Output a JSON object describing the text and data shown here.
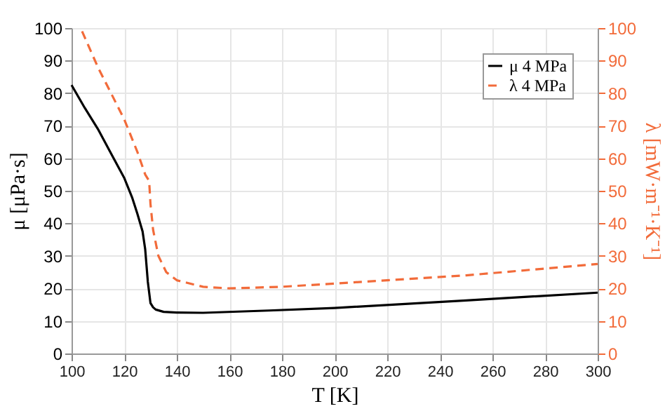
{
  "chart_data": {
    "type": "line",
    "xlabel": "T [K]",
    "ylabel": "μ [μPa·s]",
    "y2label": "λ [mW·m⁻¹·K⁻¹]",
    "xlim": [
      100,
      300
    ],
    "xticks": [
      100,
      120,
      140,
      160,
      180,
      200,
      220,
      240,
      260,
      280,
      300
    ],
    "ylim": [
      0,
      100
    ],
    "yticks": [
      0,
      10,
      20,
      30,
      40,
      50,
      60,
      70,
      80,
      90,
      100
    ],
    "y2lim": [
      0,
      100
    ],
    "y2ticks": [
      0,
      10,
      20,
      30,
      40,
      50,
      60,
      70,
      80,
      90,
      100
    ],
    "grid": true,
    "legend": "top right",
    "series": [
      {
        "name": "μ 4 MPa",
        "color": "#000000",
        "line_style": "solid",
        "x": [
          100,
          105,
          110,
          115,
          120,
          123,
          125,
          127,
          128,
          129,
          130,
          131,
          132,
          135,
          140,
          150,
          175,
          200,
          250,
          300
        ],
        "values": [
          82.5,
          75.5,
          69,
          61.5,
          54,
          48,
          43,
          37.5,
          32,
          22,
          15.5,
          14.2,
          13.5,
          12.8,
          12.6,
          12.5,
          13.2,
          14,
          16.3,
          18.7
        ]
      },
      {
        "name": "λ 4 MPa",
        "color": "#f26b3a",
        "line_style": "dashed",
        "axis": "y2",
        "x": [
          104,
          110,
          115,
          120,
          125,
          128,
          129.5,
          130,
          131,
          133,
          136,
          140,
          150,
          160,
          180,
          200,
          250,
          300
        ],
        "values": [
          99,
          88,
          80,
          72,
          62,
          55,
          53,
          46,
          38,
          30,
          25,
          22.5,
          20.5,
          20,
          20.5,
          21.5,
          24,
          27.5
        ]
      }
    ]
  }
}
